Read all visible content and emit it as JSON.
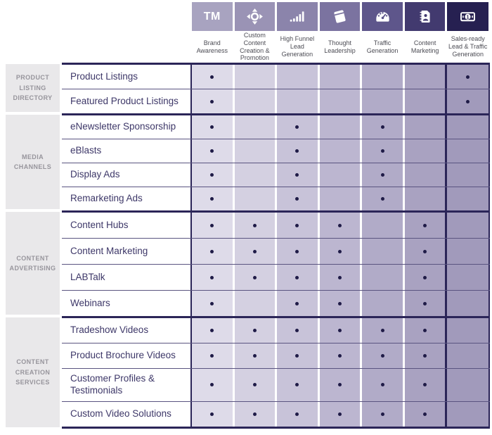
{
  "columns": [
    {
      "id": "brand-awareness",
      "label": "Brand Awareness",
      "icon": "trademark-icon",
      "icon_text": "TM",
      "box_color": "#a8a3c0",
      "cell_color": "#dedbe9"
    },
    {
      "id": "custom-content-creation-promotion",
      "label": "Custom Content Creation & Promotion",
      "icon": "move-arrows-icon",
      "box_color": "#9a93b5",
      "cell_color": "#d4d0e1"
    },
    {
      "id": "high-funnel-lead-generation",
      "label": "High Funnel Lead Generation",
      "icon": "bar-chart-icon",
      "box_color": "#8b84ab",
      "cell_color": "#c8c3d9"
    },
    {
      "id": "thought-leadership",
      "label": "Thought Leadership",
      "icon": "book-icon",
      "box_color": "#7b73a0",
      "cell_color": "#bcb6d0"
    },
    {
      "id": "traffic-generation",
      "label": "Traffic Generation",
      "icon": "gauge-icon",
      "box_color": "#5e568b",
      "cell_color": "#b1abc8"
    },
    {
      "id": "content-marketing",
      "label": "Content Marketing",
      "icon": "contact-book-icon",
      "box_color": "#423a6f",
      "cell_color": "#a9a2c1"
    },
    {
      "id": "sales-ready-lead-traffic-generation",
      "label": "Sales-ready Lead & Traffic Generation",
      "icon": "banknote-icon",
      "box_color": "#262051",
      "cell_color": "#a19abb"
    }
  ],
  "groups": [
    {
      "label": "PRODUCT LISTING DIRECTORY",
      "rows": [
        {
          "label": "Product Listings",
          "cells": [
            1,
            0,
            0,
            0,
            0,
            0,
            1
          ]
        },
        {
          "label": "Featured Product Listings",
          "cells": [
            1,
            0,
            0,
            0,
            0,
            0,
            1
          ]
        }
      ]
    },
    {
      "label": "MEDIA CHANNELS",
      "rows": [
        {
          "label": "eNewsletter Sponsorship",
          "cells": [
            1,
            0,
            1,
            0,
            1,
            0,
            0
          ]
        },
        {
          "label": "eBlasts",
          "cells": [
            1,
            0,
            1,
            0,
            1,
            0,
            0
          ]
        },
        {
          "label": "Display Ads",
          "cells": [
            1,
            0,
            1,
            0,
            1,
            0,
            0
          ]
        },
        {
          "label": "Remarketing Ads",
          "cells": [
            1,
            0,
            1,
            0,
            1,
            0,
            0
          ]
        }
      ]
    },
    {
      "label": "CONTENT ADVERTISING",
      "rows": [
        {
          "label": "Content Hubs",
          "cells": [
            1,
            1,
            1,
            1,
            0,
            1,
            0
          ]
        },
        {
          "label": "Content Marketing",
          "cells": [
            1,
            1,
            1,
            1,
            0,
            1,
            0
          ]
        },
        {
          "label": "LABTalk",
          "cells": [
            1,
            1,
            1,
            1,
            0,
            1,
            0
          ]
        },
        {
          "label": "Webinars",
          "cells": [
            1,
            0,
            1,
            1,
            0,
            1,
            0
          ]
        }
      ]
    },
    {
      "label": "CONTENT CREATION SERVICES",
      "rows": [
        {
          "label": "Tradeshow Videos",
          "cells": [
            1,
            1,
            1,
            1,
            1,
            1,
            0
          ]
        },
        {
          "label": "Product Brochure Videos",
          "cells": [
            1,
            1,
            1,
            1,
            1,
            1,
            0
          ]
        },
        {
          "label": "Customer Profiles & Testimonials",
          "cells": [
            1,
            1,
            1,
            1,
            1,
            1,
            0
          ]
        },
        {
          "label": "Custom Video Solutions",
          "cells": [
            1,
            1,
            1,
            1,
            1,
            1,
            0
          ]
        }
      ]
    }
  ],
  "palette": {
    "thick_line": "#2b2558",
    "thin_line": "#5a5480",
    "dot": "#1f1b47",
    "group_box_bg": "#e9e8ea",
    "group_box_text": "#97959c",
    "row_label_text": "#3d3768",
    "header_text": "#4c4c54",
    "icon_glyph": "#ffffff"
  }
}
